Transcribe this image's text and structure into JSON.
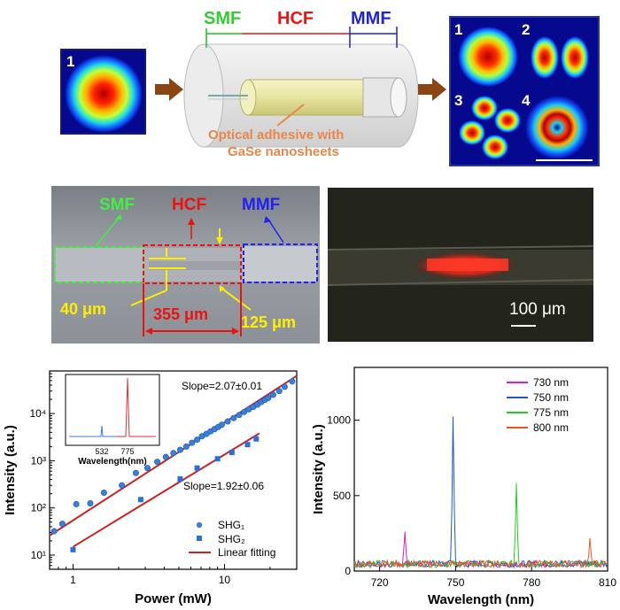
{
  "top": {
    "input_mode_num": "1",
    "fiber_labels": {
      "smf": "SMF",
      "hcf": "HCF",
      "mmf": "MMF"
    },
    "annotation_line1": "Optical adhesive with",
    "annotation_line2": "GaSe nanosheets",
    "output_mode_nums": [
      "1",
      "2",
      "3",
      "4"
    ]
  },
  "micro_left": {
    "smf": "SMF",
    "hcf": "HCF",
    "mmf": "MMF",
    "dim_40": "40 μm",
    "dim_355": "355 μm",
    "dim_125": "125 μm"
  },
  "micro_right": {
    "scale": "100 μm"
  },
  "colors": {
    "smf": "#33cc33",
    "hcf": "#ee1111",
    "mmf": "#2222dd",
    "dim": "#ffee00"
  },
  "chart_data": [
    {
      "type": "scatter",
      "log_x": true,
      "log_y": true,
      "xlabel": "Power (mW)",
      "ylabel": "Intensity (a.u.)",
      "xlim": [
        0.7,
        30
      ],
      "ylim": [
        5,
        80000
      ],
      "x_ticks": [
        "1",
        "10"
      ],
      "y_ticks": [
        "10¹",
        "10²",
        "10³",
        "10⁴"
      ],
      "series": [
        {
          "name": "SHG₁",
          "x": [
            0.75,
            0.85,
            1.05,
            1.3,
            1.6,
            2.1,
            2.6,
            3.1,
            3.6,
            4.1,
            4.6,
            5.1,
            5.6,
            6.1,
            6.6,
            7.1,
            7.6,
            8.1,
            8.6,
            9.1,
            9.6,
            10.5,
            11.5,
            12.5,
            13.5,
            14.5,
            15.5,
            16.5,
            17.5,
            18.5,
            19.5,
            21,
            23,
            25,
            28
          ],
          "y": [
            32,
            46,
            120,
            125,
            210,
            300,
            550,
            700,
            950,
            1200,
            1450,
            1700,
            2000,
            2400,
            2800,
            3300,
            3700,
            4200,
            4700,
            5200,
            5800,
            6800,
            8000,
            9300,
            10800,
            12300,
            13800,
            15500,
            17500,
            19500,
            21500,
            25000,
            30000,
            37000,
            48000
          ]
        },
        {
          "name": "SHG₂",
          "x": [
            1.0,
            2.8,
            5.1,
            6.6,
            9.0,
            11.2,
            14.2,
            16.2
          ],
          "y": [
            13,
            150,
            410,
            700,
            1100,
            1500,
            2200,
            2900
          ]
        }
      ],
      "fits": [
        {
          "name": "Linear fitting",
          "label": "Slope=2.07±0.01",
          "x": [
            0.7,
            30
          ],
          "y": [
            26,
            63000
          ]
        },
        {
          "name": "Linear fitting",
          "label": "Slope=1.92±0.06",
          "x": [
            1.0,
            17
          ],
          "y": [
            15,
            3800
          ]
        }
      ],
      "legend": [
        "SHG₁",
        "SHG₂",
        "Linear fitting"
      ],
      "legend_position": "bottom-right",
      "inset": {
        "xlabel": "Wavelength(nm)",
        "ticks": [
          "532",
          "775"
        ]
      }
    },
    {
      "type": "line",
      "xlabel": "Wavelength (nm)",
      "ylabel": "Intensity (a.u.)",
      "xlim": [
        710,
        810
      ],
      "ylim": [
        0,
        1350
      ],
      "x_ticks": [
        "720",
        "750",
        "780",
        "810"
      ],
      "y_ticks": [
        "0",
        "500",
        "1000"
      ],
      "series": [
        {
          "name": "730 nm",
          "color": "#cc22cc",
          "peak_x": 730,
          "peak_y": 220
        },
        {
          "name": "750 nm",
          "color": "#2255cc",
          "peak_x": 749,
          "peak_y": 985
        },
        {
          "name": "775 nm",
          "color": "#22cc22",
          "peak_x": 774,
          "peak_y": 540
        },
        {
          "name": "800 nm",
          "color": "#ee5522",
          "peak_x": 803,
          "peak_y": 180
        }
      ],
      "legend_position": "top-right"
    }
  ]
}
